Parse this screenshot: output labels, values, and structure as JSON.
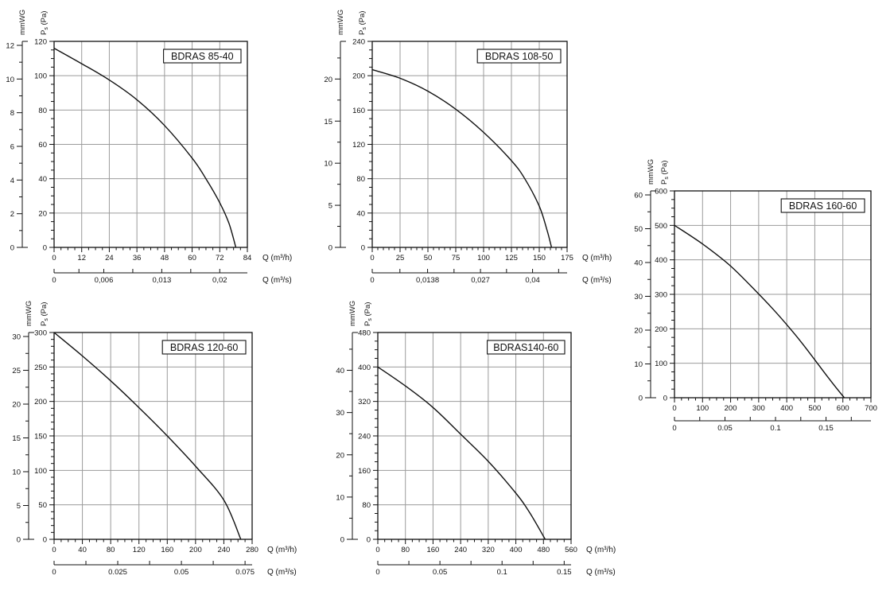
{
  "page": {
    "background": "#ffffff"
  },
  "colors": {
    "curve": "#111111",
    "grid": "#9b9b9b",
    "axis": "#111111",
    "text": "#111111",
    "title_border": "#111111",
    "title_fill": "#ffffff"
  },
  "labels": {
    "pressure_axis_mmwg": "mmWG",
    "pressure_axis_pa": "Ps (Pa)",
    "flow_axis_hour": "Q (m³/h)",
    "flow_axis_second": "Q (m³/s)"
  },
  "chart_data": [
    {
      "type": "line",
      "title": "BDRAS 85-40",
      "ylabel": "Ps (Pa)",
      "y2label": "mmWG",
      "xlabel": "Q (m³/h)",
      "x2label": "Q (m³/s)",
      "show_x_unit_labels": true,
      "xlim": [
        0,
        84
      ],
      "x_major_ticks": [
        0,
        12,
        24,
        36,
        48,
        60,
        72,
        84
      ],
      "x_minor_step": 3,
      "ylim": [
        0,
        120
      ],
      "y_major_ticks": [
        0,
        20,
        40,
        60,
        80,
        100,
        120
      ],
      "y_minor_step": 5,
      "mmwg_major_ticks": [
        0,
        2,
        4,
        6,
        8,
        10,
        12
      ],
      "mmwg_minor_step": 1,
      "x2_ticks": [
        {
          "label": "0",
          "value_m3h": 0
        },
        {
          "label": "0,006",
          "value_m3h": 21.6
        },
        {
          "label": "0,013",
          "value_m3h": 46.8
        },
        {
          "label": "0,02",
          "value_m3h": 72
        }
      ],
      "curve_points_q_pa": [
        [
          0,
          116
        ],
        [
          12,
          107
        ],
        [
          24,
          97.5
        ],
        [
          36,
          86
        ],
        [
          48,
          71
        ],
        [
          60,
          52
        ],
        [
          66,
          40
        ],
        [
          72,
          26
        ],
        [
          76,
          14
        ],
        [
          79,
          0
        ]
      ]
    },
    {
      "type": "line",
      "title": "BDRAS 108-50",
      "ylabel": "Ps (Pa)",
      "y2label": "mmWG",
      "xlabel": "Q (m³/h)",
      "x2label": "Q (m³/s)",
      "show_x_unit_labels": true,
      "xlim": [
        0,
        175
      ],
      "x_major_ticks": [
        0,
        25,
        50,
        75,
        100,
        125,
        150,
        175
      ],
      "x_minor_step": 5,
      "ylim": [
        0,
        240
      ],
      "y_major_ticks": [
        0,
        40,
        80,
        120,
        160,
        200,
        240
      ],
      "y_minor_step": 10,
      "mmwg_major_ticks": [
        0,
        5,
        10,
        15,
        20
      ],
      "mmwg_minor_step": 2.5,
      "x2_ticks": [
        {
          "label": "0",
          "value_m3h": 0
        },
        {
          "label": "0,0138",
          "value_m3h": 49.7
        },
        {
          "label": "0,027",
          "value_m3h": 97.2
        },
        {
          "label": "0,04",
          "value_m3h": 144
        }
      ],
      "curve_points_q_pa": [
        [
          0,
          207
        ],
        [
          25,
          197
        ],
        [
          50,
          182
        ],
        [
          75,
          161
        ],
        [
          100,
          134
        ],
        [
          125,
          101
        ],
        [
          137,
          80
        ],
        [
          150,
          48
        ],
        [
          157,
          20
        ],
        [
          161,
          0
        ]
      ]
    },
    {
      "type": "line",
      "title": "BDRAS 160-60",
      "ylabel": "Ps (Pa)",
      "y2label": "mmWG",
      "xlabel": "Q (m³/h)",
      "x2label": "Q (m³/s)",
      "show_x_unit_labels": false,
      "xlim": [
        0,
        700
      ],
      "x_major_ticks": [
        0,
        100,
        200,
        300,
        400,
        500,
        600,
        700
      ],
      "x_minor_step": 25,
      "ylim": [
        0,
        600
      ],
      "y_major_ticks": [
        0,
        100,
        200,
        300,
        400,
        500,
        600
      ],
      "y_minor_step": 25,
      "mmwg_major_ticks": [
        0,
        10,
        20,
        30,
        40,
        50,
        60
      ],
      "mmwg_minor_step": 5,
      "x2_ticks": [
        {
          "label": "0",
          "value_m3h": 0
        },
        {
          "label": "0.05",
          "value_m3h": 180
        },
        {
          "label": "0.1",
          "value_m3h": 360
        },
        {
          "label": "0.15",
          "value_m3h": 540
        }
      ],
      "curve_points_q_pa": [
        [
          0,
          500
        ],
        [
          100,
          446
        ],
        [
          200,
          382
        ],
        [
          300,
          301
        ],
        [
          350,
          258
        ],
        [
          400,
          212
        ],
        [
          450,
          163
        ],
        [
          500,
          110
        ],
        [
          550,
          56
        ],
        [
          605,
          0
        ]
      ]
    },
    {
      "type": "line",
      "title": "BDRAS 120-60",
      "ylabel": "Ps (Pa)",
      "y2label": "mmWG",
      "xlabel": "Q (m³/h)",
      "x2label": "Q (m³/s)",
      "show_x_unit_labels": true,
      "xlim": [
        0,
        280
      ],
      "x_major_ticks": [
        0,
        40,
        80,
        120,
        160,
        200,
        240,
        280
      ],
      "x_minor_step": 10,
      "ylim": [
        0,
        300
      ],
      "y_major_ticks": [
        0,
        50,
        100,
        150,
        200,
        250,
        300
      ],
      "y_minor_step": 10,
      "mmwg_major_ticks": [
        0,
        5,
        10,
        15,
        20,
        25,
        30
      ],
      "mmwg_minor_step": 2.5,
      "x2_ticks": [
        {
          "label": "0",
          "value_m3h": 0
        },
        {
          "label": "0.025",
          "value_m3h": 90
        },
        {
          "label": "0.05",
          "value_m3h": 180
        },
        {
          "label": "0.075",
          "value_m3h": 270
        }
      ],
      "curve_points_q_pa": [
        [
          0,
          300
        ],
        [
          40,
          266
        ],
        [
          80,
          230
        ],
        [
          120,
          191
        ],
        [
          160,
          150
        ],
        [
          200,
          106
        ],
        [
          240,
          57
        ],
        [
          264,
          0
        ]
      ]
    },
    {
      "type": "line",
      "title": "BDRAS140-60",
      "ylabel": "Ps (Pa)",
      "y2label": "mmWG",
      "xlabel": "Q (m³/h)",
      "x2label": "Q (m³/s)",
      "show_x_unit_labels": true,
      "xlim": [
        0,
        560
      ],
      "x_major_ticks": [
        0,
        80,
        160,
        240,
        320,
        400,
        480,
        560
      ],
      "x_minor_step": 20,
      "ylim": [
        0,
        480
      ],
      "y_major_ticks": [
        0,
        80,
        160,
        240,
        320,
        400,
        480
      ],
      "y_minor_step": 20,
      "mmwg_major_ticks": [
        0,
        10,
        20,
        30,
        40
      ],
      "mmwg_minor_step": 5,
      "x2_ticks": [
        {
          "label": "0",
          "value_m3h": 0
        },
        {
          "label": "0.05",
          "value_m3h": 180
        },
        {
          "label": "0.1",
          "value_m3h": 360
        },
        {
          "label": "0.15",
          "value_m3h": 540
        }
      ],
      "curve_points_q_pa": [
        [
          0,
          400
        ],
        [
          80,
          356
        ],
        [
          160,
          306
        ],
        [
          240,
          244
        ],
        [
          320,
          181
        ],
        [
          400,
          107
        ],
        [
          440,
          62
        ],
        [
          485,
          0
        ]
      ]
    }
  ]
}
